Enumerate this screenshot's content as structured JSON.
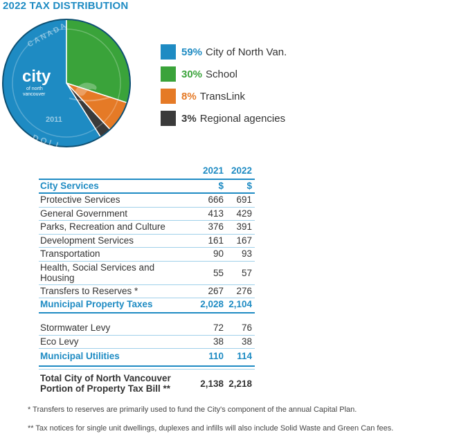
{
  "title": "2022 TAX DISTRIBUTION",
  "logo": {
    "word": "city",
    "line2": "of north",
    "line3": "vancouver"
  },
  "coin_text": {
    "top_left": "C A N A D A",
    "bottom": "D O L L",
    "year": "2011"
  },
  "chart_data": [
    {
      "type": "pie",
      "title": "2022 TAX DISTRIBUTION",
      "slices": [
        {
          "pct_label": "59%",
          "label": "City of North Van.",
          "value": 59,
          "color": "#1e8bc3"
        },
        {
          "pct_label": "30%",
          "label": "School",
          "value": 30,
          "color": "#3aa33a"
        },
        {
          "pct_label": "8%",
          "label": "TransLink",
          "value": 8,
          "color": "#e57a26"
        },
        {
          "pct_label": "3%",
          "label": "Regional agencies",
          "value": 3,
          "color": "#3a3a3a"
        }
      ],
      "legend_placement": "right"
    },
    {
      "type": "table",
      "columns": [
        "",
        "2021",
        "2022"
      ],
      "units_header": {
        "label": "City Services",
        "v2021": "$",
        "v2022": "$"
      },
      "rows": [
        {
          "label": "Protective Services",
          "v2021": "666",
          "v2022": "691"
        },
        {
          "label": "General Government",
          "v2021": "413",
          "v2022": "429"
        },
        {
          "label": "Parks, Recreation and Culture",
          "v2021": "376",
          "v2022": "391"
        },
        {
          "label": "Development Services",
          "v2021": "161",
          "v2022": "167"
        },
        {
          "label": "Transportation",
          "v2021": "90",
          "v2022": "93"
        },
        {
          "label": "Health, Social Services and",
          "label2": "Housing",
          "v2021": "55",
          "v2022": "57"
        },
        {
          "label": "Transfers to Reserves *",
          "v2021": "267",
          "v2022": "276"
        }
      ],
      "subtotal1": {
        "label": "Municipal Property Taxes",
        "v2021": "2,028",
        "v2022": "2,104"
      },
      "utilities": [
        {
          "label": "Stormwater Levy",
          "v2021": "72",
          "v2022": "76"
        },
        {
          "label": "Eco Levy",
          "v2021": "38",
          "v2022": "38"
        }
      ],
      "subtotal2": {
        "label": "Municipal Utilities",
        "v2021": "110",
        "v2022": "114"
      },
      "total": {
        "label_line1": "Total City of North Vancouver",
        "label_line2": "Portion of Property Tax Bill **",
        "v2021": "2,138",
        "v2022": "2,218"
      }
    }
  ],
  "footnotes": [
    "* Transfers to reserves are primarily used to fund the City's component of the annual Capital Plan.",
    "** Tax notices for single unit dwellings, duplexes and infills will also include Solid Waste and Green Can fees."
  ]
}
